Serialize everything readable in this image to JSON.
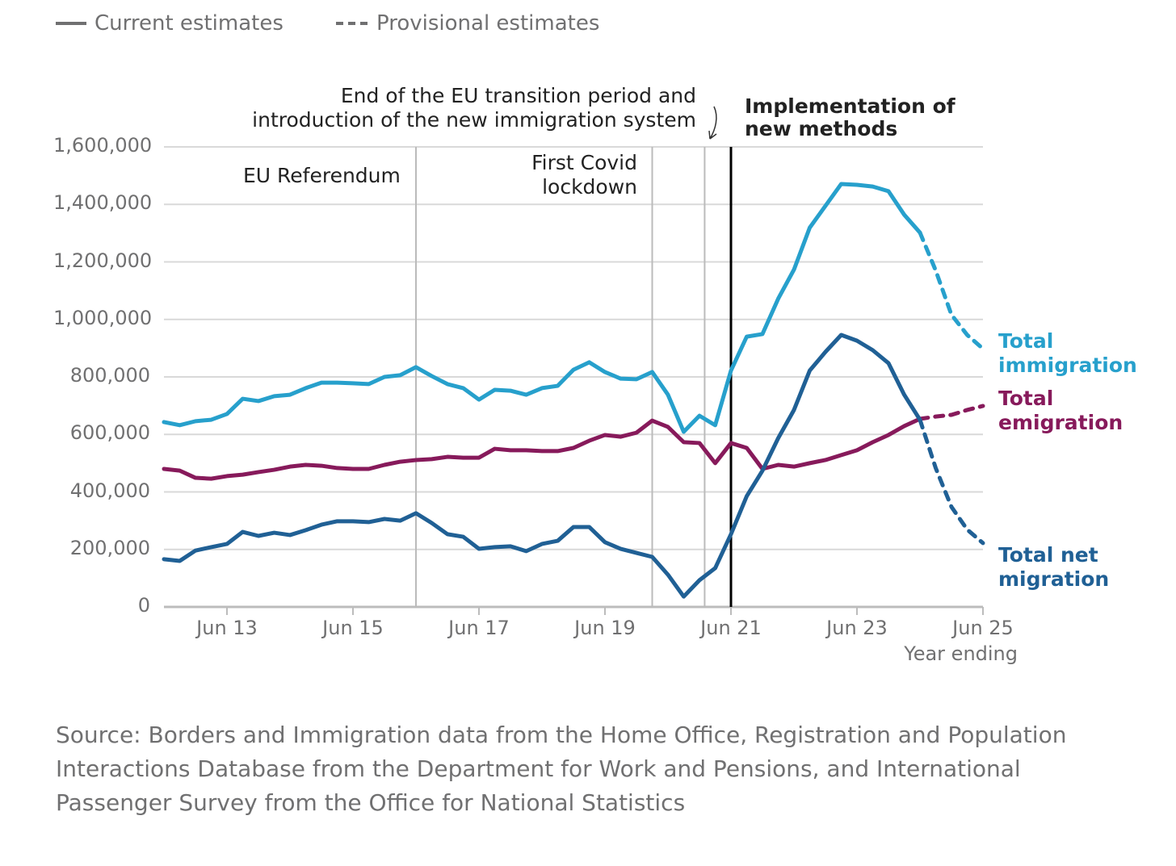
{
  "legend": {
    "current": "Current estimates",
    "provisional": "Provisional estimates"
  },
  "source": "Source: Borders and Immigration data from the Home Office, Registration and Population Interactions Database from the Department for Work and Pensions, and International Passenger Survey from the Office for National Statistics",
  "chart_data": {
    "type": "line",
    "xlabel": "Year ending",
    "ylabel": "",
    "ylim": [
      0,
      1600000
    ],
    "yticks": [
      "0",
      "200,000",
      "400,000",
      "600,000",
      "800,000",
      "1,000,000",
      "1,200,000",
      "1,400,000",
      "1,600,000"
    ],
    "ytick_values": [
      0,
      200000,
      400000,
      600000,
      800000,
      1000000,
      1200000,
      1400000,
      1600000
    ],
    "xticks": [
      "Jun 13",
      "Jun 15",
      "Jun 17",
      "Jun 19",
      "Jun 21",
      "Jun 23",
      "Jun 25"
    ],
    "xtick_quarter_index": [
      4,
      12,
      20,
      28,
      36,
      44,
      52
    ],
    "x_start": "Jun 12",
    "x_step": "quarter",
    "grid": true,
    "provisional_from_index": 48,
    "series": [
      {
        "name": "Total immigration",
        "label_lines": [
          "Total",
          "immigration"
        ],
        "color": "#27a0cc",
        "values": [
          643000,
          632000,
          646000,
          651000,
          671000,
          724000,
          716000,
          733000,
          738000,
          761000,
          780000,
          780000,
          778000,
          775000,
          800000,
          806000,
          834000,
          803000,
          775000,
          761000,
          721000,
          755000,
          752000,
          738000,
          761000,
          769000,
          825000,
          851000,
          817000,
          794000,
          792000,
          817000,
          738000,
          609000,
          665000,
          632000,
          822000,
          940000,
          949000,
          1072000,
          1173000,
          1319000,
          1395000,
          1471000,
          1468000,
          1462000,
          1446000,
          1364000,
          1302000,
          1170000,
          1016000,
          946000,
          898000
        ]
      },
      {
        "name": "Total emigration",
        "label_lines": [
          "Total",
          "emigration"
        ],
        "color": "#871a5b",
        "values": [
          480000,
          474000,
          449000,
          446000,
          455000,
          460000,
          469000,
          477000,
          488000,
          494000,
          491000,
          483000,
          480000,
          480000,
          494000,
          505000,
          511000,
          514000,
          522000,
          519000,
          519000,
          550000,
          545000,
          545000,
          542000,
          542000,
          553000,
          578000,
          598000,
          592000,
          606000,
          648000,
          626000,
          573000,
          570000,
          500000,
          570000,
          553000,
          480000,
          494000,
          488000,
          500000,
          511000,
          528000,
          545000,
          573000,
          598000,
          629000,
          654000,
          662000,
          668000,
          685000,
          699000
        ]
      },
      {
        "name": "Total net migration",
        "label_lines": [
          "Total net",
          "migration"
        ],
        "color": "#206095",
        "values": [
          166000,
          160000,
          196000,
          208000,
          219000,
          261000,
          247000,
          258000,
          250000,
          267000,
          286000,
          298000,
          298000,
          295000,
          306000,
          300000,
          326000,
          292000,
          253000,
          244000,
          202000,
          208000,
          211000,
          194000,
          219000,
          230000,
          278000,
          278000,
          225000,
          202000,
          188000,
          174000,
          112000,
          36000,
          93000,
          135000,
          253000,
          385000,
          474000,
          587000,
          685000,
          822000,
          887000,
          946000,
          926000,
          893000,
          848000,
          738000,
          651000,
          483000,
          348000,
          269000,
          222000
        ]
      }
    ],
    "annotations": [
      {
        "text_lines": [
          "EU Referendum"
        ],
        "quarter_index": 16,
        "color": "#bbbbbb"
      },
      {
        "text_lines": [
          "First Covid",
          "lockdown"
        ],
        "quarter_index": 31,
        "color": "#bbbbbb"
      },
      {
        "text_lines": [
          "End of the EU transition period and",
          "introduction of the new immigration system"
        ],
        "quarter_index": 34.33,
        "color": "#bbbbbb"
      },
      {
        "text_lines": [
          "Implementation of",
          "new methods"
        ],
        "quarter_index": 36,
        "color": "#000000"
      }
    ]
  }
}
